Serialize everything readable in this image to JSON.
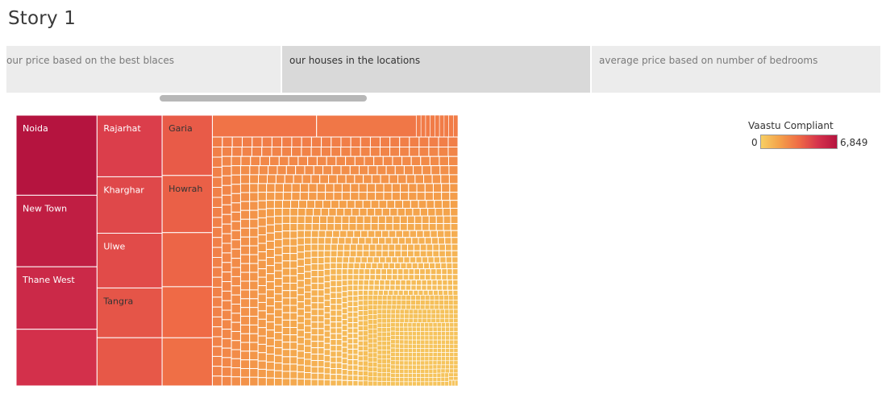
{
  "story": {
    "title": "Story 1"
  },
  "tabs": [
    {
      "label": "our price based on the best blaces",
      "active": false
    },
    {
      "label": "our houses in the locations",
      "active": true
    },
    {
      "label": "average price based on number of bedrooms",
      "active": false
    }
  ],
  "legend": {
    "title": "Vaastu Compliant",
    "min_label": "0",
    "max_label": "6,849",
    "min": 0,
    "max": 6849,
    "colors": [
      "#f6cf63",
      "#f4a04a",
      "#ef6b46",
      "#d6334c",
      "#b5143f"
    ]
  },
  "chart_data": {
    "type": "treemap",
    "measure": "Vaastu Compliant",
    "color_range": [
      0,
      6849
    ],
    "labeled_cells": [
      {
        "name": "Noida",
        "value": 6849
      },
      {
        "name": "New Town",
        "value": 6300
      },
      {
        "name": "Thane West",
        "value": 5700
      },
      {
        "name": "",
        "value": 5300
      },
      {
        "name": "Rajarhat",
        "value": 4800
      },
      {
        "name": "Kharghar",
        "value": 4500
      },
      {
        "name": "Ulwe",
        "value": 4400
      },
      {
        "name": "Tangra",
        "value": 4100
      },
      {
        "name": "",
        "value": 4000
      },
      {
        "name": "Garia",
        "value": 3900
      },
      {
        "name": "Howrah",
        "value": 3750
      },
      {
        "name": "",
        "value": 3600
      },
      {
        "name": "",
        "value": 3450
      },
      {
        "name": "",
        "value": 3300
      },
      {
        "name": "",
        "value": 3150
      },
      {
        "name": "",
        "value": 3050
      }
    ],
    "unlabeled_cell_count": 1400,
    "unlabeled_value_range": [
      400,
      2900
    ]
  }
}
